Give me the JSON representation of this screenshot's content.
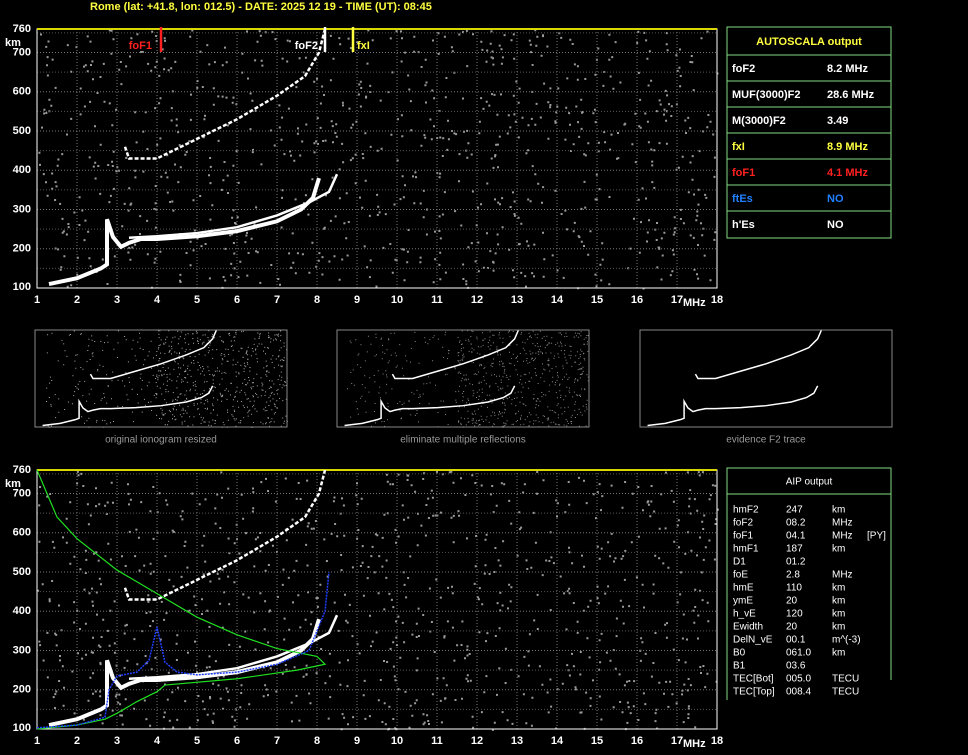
{
  "header": {
    "title": "Rome (lat: +41.8, lon: 012.5) - DATE: 2025 12 19 - TIME (UT): 08:45"
  },
  "axes": {
    "xticks": [
      "1",
      "2",
      "3",
      "4",
      "5",
      "6",
      "7",
      "8",
      "9",
      "10",
      "11",
      "12",
      "13",
      "14",
      "15",
      "16",
      "17",
      "18"
    ],
    "xunit": "MHz",
    "yticks": [
      "100",
      "200",
      "300",
      "400",
      "500",
      "600",
      "700",
      "760"
    ],
    "yunit": "km"
  },
  "markers": [
    {
      "label": "foF1",
      "color": "#ff2020"
    },
    {
      "label": "foF2",
      "color": "#ffffff"
    },
    {
      "label": "fxI",
      "color": "#ffff40"
    }
  ],
  "autoscala": {
    "title": "AUTOSCALA output",
    "rows": [
      {
        "name": "foF2",
        "value": "8.2 MHz",
        "color": "#ffffff"
      },
      {
        "name": "MUF(3000)F2",
        "value": "28.6 MHz",
        "color": "#ffffff"
      },
      {
        "name": "M(3000)F2",
        "value": "3.49",
        "color": "#ffffff"
      },
      {
        "name": "fxI",
        "value": "8.9 MHz",
        "color": "#ffff40"
      },
      {
        "name": "foF1",
        "value": "4.1 MHz",
        "color": "#ff2020"
      },
      {
        "name": "ftEs",
        "value": "NO",
        "color": "#2080ff"
      },
      {
        "name": "h'Es",
        "value": "NO",
        "color": "#ffffff"
      }
    ]
  },
  "thumbnails": [
    "original ionogram resized",
    "eliminate multiple reflections",
    "evidence F2 trace"
  ],
  "aip": {
    "title": "AIP output",
    "rows": [
      [
        "hmF2",
        "247",
        "km"
      ],
      [
        "foF2",
        "08.2",
        "MHz"
      ],
      [
        "foF1",
        "04.1",
        "MHz",
        "[PY]"
      ],
      [
        "hmF1",
        "187",
        "km"
      ],
      [
        "D1",
        "01.2"
      ],
      [
        "foE",
        "2.8",
        "MHz"
      ],
      [
        "hmE",
        "110",
        "km"
      ],
      [
        "ymE",
        "20",
        "km"
      ],
      [
        "h_vE",
        "120",
        "km"
      ],
      [
        "Ewidth",
        "20",
        "km"
      ],
      [
        "DelN_vE",
        "00.1",
        "m^(-3)"
      ],
      [
        "B0",
        "061.0",
        "km"
      ],
      [
        "B1",
        "03.6"
      ],
      [
        "TEC[Bot]",
        "005.0",
        "TECU"
      ],
      [
        "TEC[Top]",
        "008.4",
        "TECU"
      ]
    ]
  }
}
